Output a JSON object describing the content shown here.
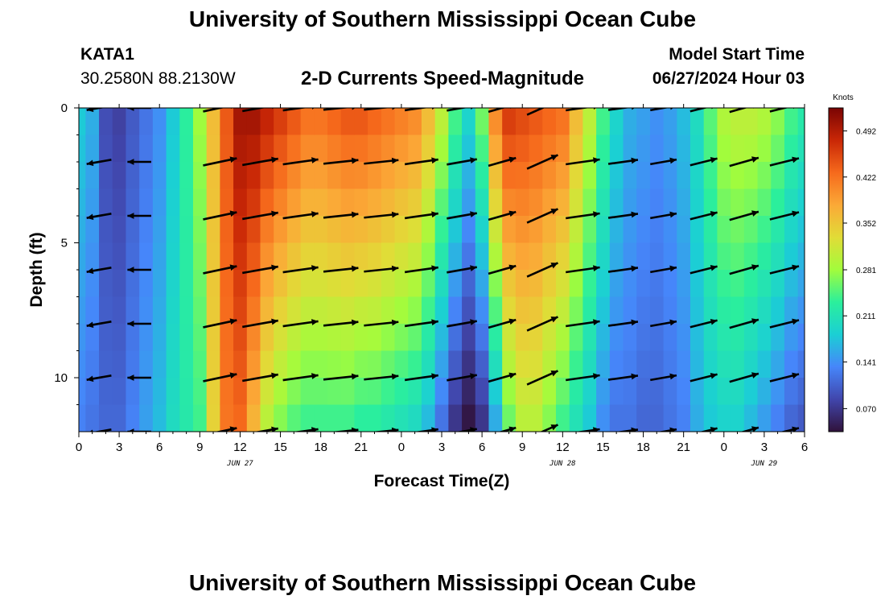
{
  "page": {
    "title": "University of Southern Mississippi Ocean Cube",
    "title_repeat": "University of Southern Mississippi Ocean Cube",
    "station": "KATA1",
    "coordinates": "30.2580N  88.2130W",
    "subtitle": "2-D Currents Speed-Magnitude",
    "model_start_label": "Model Start Time",
    "model_start_value": "06/27/2024 Hour 03"
  },
  "chart_data": {
    "type": "heatmap",
    "title": "2-D Currents Speed-Magnitude",
    "xlabel": "Forecast Time(Z)",
    "ylabel": "Depth (ft)",
    "x_hours": [
      0,
      3,
      6,
      9,
      12,
      15,
      18,
      21,
      24,
      27,
      30,
      33,
      36,
      39,
      42,
      45,
      48,
      51,
      54
    ],
    "x_tick_labels": [
      "0",
      "3",
      "6",
      "9",
      "12",
      "15",
      "18",
      "21",
      "0",
      "3",
      "6",
      "9",
      "12",
      "15",
      "18",
      "21",
      "0",
      "3",
      "6"
    ],
    "xlim": [
      0,
      54
    ],
    "date_labels": [
      {
        "hour": 12,
        "text": "JUN 27"
      },
      {
        "hour": 36,
        "text": "JUN 28"
      },
      {
        "hour": 51,
        "text": "JUN 29"
      }
    ],
    "y_ticks": [
      0,
      5,
      10
    ],
    "y_tick_labels": [
      "0",
      "5",
      "10"
    ],
    "ylim": [
      0,
      12
    ],
    "y_reversed": true,
    "colorbar": {
      "label": "Knots",
      "tick_values": [
        0.07,
        0.141,
        0.211,
        0.281,
        0.352,
        0.422,
        0.492
      ],
      "tick_labels": [
        "0.070",
        "0.141",
        "0.211",
        "0.281",
        "0.352",
        "0.422",
        "0.492"
      ],
      "range": [
        0.035,
        0.527
      ],
      "colors": [
        "#30123b",
        "#4146ac",
        "#4686fa",
        "#1bcfd4",
        "#2bef9c",
        "#a2fc3c",
        "#e1dc37",
        "#fba937",
        "#f66a1c",
        "#c92706",
        "#7a0403"
      ]
    },
    "depth_layers_ft": [
      0.5,
      1.5,
      2.5,
      3.5,
      4.5,
      5.5,
      6.5,
      7.5,
      8.5,
      9.5,
      10.5,
      11.5
    ],
    "speed_time_hours": [
      0,
      1,
      2,
      3,
      4,
      5,
      6,
      7,
      8,
      9,
      10,
      11,
      12,
      13,
      14,
      15,
      16,
      17,
      18,
      19,
      20,
      21,
      22,
      23,
      24,
      25,
      26,
      27,
      28,
      29,
      30,
      31,
      32,
      33,
      34,
      35,
      36,
      37,
      38,
      39,
      40,
      41,
      42,
      43,
      44,
      45,
      46,
      47,
      48,
      49,
      50,
      51,
      52,
      53,
      54
    ],
    "speed_surface_knots": [
      0.18,
      0.16,
      0.09,
      0.08,
      0.1,
      0.12,
      0.14,
      0.18,
      0.23,
      0.28,
      0.36,
      0.44,
      0.5,
      0.5,
      0.48,
      0.46,
      0.44,
      0.42,
      0.42,
      0.43,
      0.44,
      0.44,
      0.43,
      0.42,
      0.41,
      0.4,
      0.36,
      0.3,
      0.24,
      0.19,
      0.26,
      0.4,
      0.46,
      0.45,
      0.44,
      0.43,
      0.42,
      0.36,
      0.3,
      0.24,
      0.19,
      0.16,
      0.15,
      0.14,
      0.15,
      0.17,
      0.2,
      0.25,
      0.29,
      0.3,
      0.3,
      0.29,
      0.27,
      0.24,
      0.22
    ],
    "speed_bottom_knots": [
      0.13,
      0.12,
      0.11,
      0.11,
      0.13,
      0.15,
      0.17,
      0.2,
      0.22,
      0.24,
      0.34,
      0.42,
      0.43,
      0.37,
      0.3,
      0.27,
      0.25,
      0.24,
      0.24,
      0.24,
      0.24,
      0.23,
      0.23,
      0.22,
      0.21,
      0.2,
      0.17,
      0.12,
      0.07,
      0.04,
      0.07,
      0.16,
      0.26,
      0.3,
      0.3,
      0.27,
      0.24,
      0.21,
      0.18,
      0.14,
      0.12,
      0.12,
      0.11,
      0.11,
      0.12,
      0.13,
      0.16,
      0.18,
      0.19,
      0.19,
      0.17,
      0.15,
      0.13,
      0.11,
      0.1
    ],
    "vector_time_hours": [
      1.5,
      4.5,
      10.5,
      13.5,
      16.5,
      19.5,
      22.5,
      25.5,
      28.5,
      31.5,
      34.5,
      37.5,
      40.5,
      43.5,
      46.5,
      49.5,
      52.5
    ],
    "vector_depths_ft": [
      0,
      2,
      4,
      6,
      8,
      10,
      12
    ],
    "vector_direction_deg": [
      190,
      180,
      12,
      10,
      8,
      6,
      6,
      8,
      10,
      16,
      24,
      8,
      8,
      10,
      14,
      16,
      14
    ],
    "vector_speed_knots": [
      0.13,
      0.09,
      0.42,
      0.48,
      0.46,
      0.44,
      0.43,
      0.4,
      0.3,
      0.24,
      0.4,
      0.42,
      0.28,
      0.18,
      0.22,
      0.29,
      0.28
    ]
  }
}
